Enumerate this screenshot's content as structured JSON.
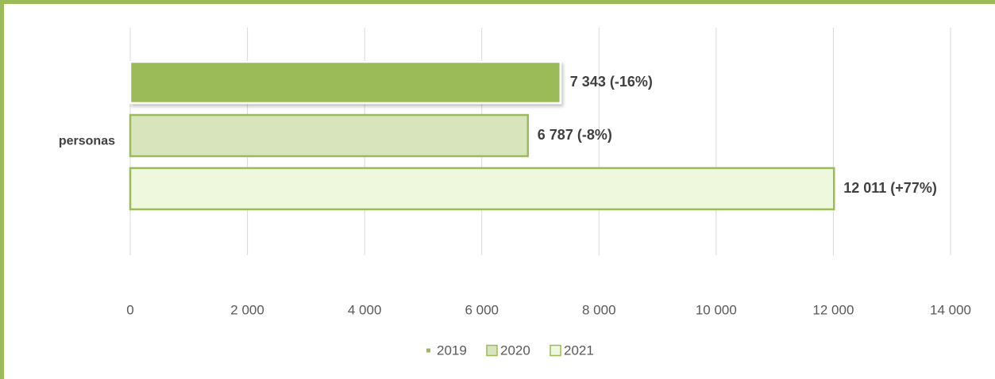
{
  "chart_data": {
    "type": "bar",
    "orientation": "horizontal",
    "categories": [
      "personas"
    ],
    "series": [
      {
        "name": "2019",
        "color": "#9bbb59",
        "edgecolor": "#ffffff",
        "values": [
          7343
        ],
        "value_labels": [
          "7 343 (-16%)"
        ]
      },
      {
        "name": "2020",
        "color": "#d7e4bc",
        "edgecolor": "#9bbb59",
        "values": [
          6787
        ],
        "value_labels": [
          "6 787 (-8%)"
        ]
      },
      {
        "name": "2021",
        "color": "#eef8dc",
        "edgecolor": "#9bbb59",
        "values": [
          12011
        ],
        "value_labels": [
          "12 011 (+77%)"
        ]
      }
    ],
    "xlim": [
      0,
      14000
    ],
    "xticks": [
      0,
      {
        "value": 2000,
        "label": "2 000"
      },
      {
        "value": 4000,
        "label": "4 000"
      },
      {
        "value": 6000,
        "label": "6 000"
      },
      {
        "value": 8000,
        "label": "8 000"
      },
      {
        "value": 10000,
        "label": "10 000"
      },
      {
        "value": 12000,
        "label": "12 000"
      },
      {
        "value": 14000,
        "label": "14 000"
      }
    ],
    "grid": true,
    "legend": "bottom"
  }
}
